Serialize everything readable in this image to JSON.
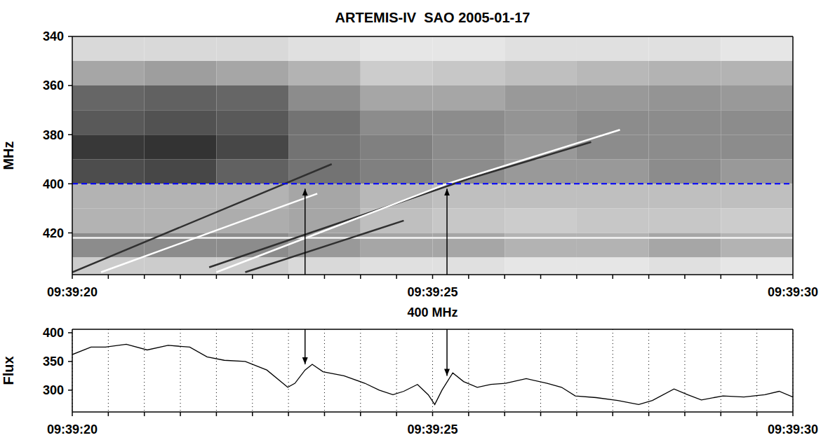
{
  "chart_data": [
    {
      "type": "spectrogram",
      "title": "ARTEMIS-IV  SAO 2005-01-17",
      "ylabel": "MHz",
      "xlim": [
        20,
        30
      ],
      "xticks": [
        {
          "value": 20,
          "label": "09:39:20"
        },
        {
          "value": 25,
          "label": "09:39:25"
        },
        {
          "value": 30,
          "label": "09:39:30"
        }
      ],
      "minor_xticks": [
        20.5,
        21,
        21.5,
        22,
        22.5,
        23,
        23.5,
        24,
        24.5,
        25.5,
        26,
        26.5,
        27,
        27.5,
        28,
        28.5,
        29,
        29.5
      ],
      "ylim": [
        340,
        437
      ],
      "yticks": [
        340,
        360,
        380,
        400,
        420
      ],
      "cells": {
        "time_edges": [
          20,
          21,
          22,
          23,
          24,
          25,
          26,
          27,
          28,
          29,
          30
        ],
        "freq_edges": [
          340,
          350,
          360,
          370,
          380,
          390,
          400,
          410,
          420,
          430,
          437
        ],
        "intensity": [
          [
            0.15,
            0.15,
            0.15,
            0.12,
            0.1,
            0.1,
            0.12,
            0.12,
            0.12,
            0.1
          ],
          [
            0.35,
            0.38,
            0.35,
            0.3,
            0.2,
            0.22,
            0.25,
            0.28,
            0.3,
            0.3
          ],
          [
            0.6,
            0.62,
            0.6,
            0.45,
            0.35,
            0.35,
            0.4,
            0.4,
            0.42,
            0.4
          ],
          [
            0.65,
            0.68,
            0.65,
            0.55,
            0.45,
            0.45,
            0.42,
            0.45,
            0.45,
            0.45
          ],
          [
            0.78,
            0.8,
            0.72,
            0.55,
            0.5,
            0.45,
            0.4,
            0.45,
            0.45,
            0.45
          ],
          [
            0.7,
            0.72,
            0.62,
            0.55,
            0.5,
            0.45,
            0.4,
            0.4,
            0.45,
            0.4
          ],
          [
            0.3,
            0.3,
            0.3,
            0.35,
            0.28,
            0.25,
            0.25,
            0.25,
            0.25,
            0.25
          ],
          [
            0.3,
            0.3,
            0.32,
            0.35,
            0.25,
            0.22,
            0.2,
            0.22,
            0.22,
            0.2
          ],
          [
            0.45,
            0.45,
            0.45,
            0.4,
            0.35,
            0.35,
            0.3,
            0.3,
            0.35,
            0.3
          ],
          [
            0.2,
            0.2,
            0.2,
            0.15,
            0.12,
            0.12,
            0.1,
            0.1,
            0.12,
            0.1
          ]
        ]
      },
      "lines": [
        {
          "x": [
            20,
            30
          ],
          "values": [
            422,
            422
          ],
          "color": "#f4f4f4",
          "line_style": "solid"
        },
        {
          "x": [
            20.0,
            23.6
          ],
          "values": [
            436,
            392
          ],
          "color": "#303030",
          "line_style": "solid"
        },
        {
          "x": [
            20.4,
            23.4
          ],
          "values": [
            436,
            404
          ],
          "color": "#ffffff",
          "line_style": "solid"
        },
        {
          "x": [
            21.9,
            25.5,
            27.2
          ],
          "values": [
            434,
            398,
            383
          ],
          "color": "#303030",
          "line_style": "solid"
        },
        {
          "x": [
            22.0,
            25.2,
            27.6
          ],
          "values": [
            436,
            400,
            378
          ],
          "color": "#ffffff",
          "line_style": "solid"
        },
        {
          "x": [
            22.4,
            24.6
          ],
          "values": [
            436,
            415
          ],
          "color": "#303030",
          "line_style": "solid"
        },
        {
          "x": [
            20,
            30
          ],
          "values": [
            400,
            400
          ],
          "color": "#0000ff",
          "line_style": "dashed"
        }
      ],
      "arrows": [
        {
          "x": 23.23,
          "from_mhz": 402,
          "to_flux": 345
        },
        {
          "x": 25.2,
          "from_mhz": 402,
          "to_flux": 325
        }
      ]
    },
    {
      "type": "line",
      "title": "400 MHz",
      "ylabel": "Flux",
      "xlim": [
        20,
        30
      ],
      "xticks": [
        {
          "value": 20,
          "label": "09:39:20"
        },
        {
          "value": 25,
          "label": "09:39:25"
        },
        {
          "value": 30,
          "label": "09:39:30"
        }
      ],
      "minor_xticks": [
        20.5,
        21,
        21.5,
        22,
        22.5,
        23,
        23.5,
        24,
        24.5,
        25.5,
        26,
        26.5,
        27,
        27.5,
        28,
        28.5,
        29,
        29.5
      ],
      "ylim": [
        262,
        406
      ],
      "yticks": [
        300,
        350,
        400
      ],
      "grid": true,
      "color": "#000000",
      "x": [
        20.0,
        20.26,
        20.46,
        20.75,
        21.04,
        21.33,
        21.63,
        21.87,
        22.11,
        22.4,
        22.7,
        22.99,
        23.09,
        23.23,
        23.33,
        23.48,
        23.77,
        24.06,
        24.26,
        24.45,
        24.6,
        24.79,
        24.94,
        25.03,
        25.13,
        25.28,
        25.43,
        25.62,
        25.81,
        26.01,
        26.3,
        26.59,
        26.79,
        26.98,
        27.27,
        27.57,
        27.86,
        28.05,
        28.35,
        28.54,
        28.73,
        29.03,
        29.32,
        29.61,
        29.81,
        30.0
      ],
      "values": [
        362,
        375,
        375,
        380,
        370,
        378,
        375,
        358,
        352,
        350,
        335,
        305,
        312,
        335,
        345,
        332,
        325,
        312,
        300,
        292,
        298,
        310,
        292,
        275,
        300,
        330,
        315,
        305,
        310,
        312,
        320,
        312,
        305,
        290,
        287,
        282,
        275,
        282,
        302,
        292,
        283,
        290,
        288,
        292,
        298,
        288
      ]
    }
  ]
}
